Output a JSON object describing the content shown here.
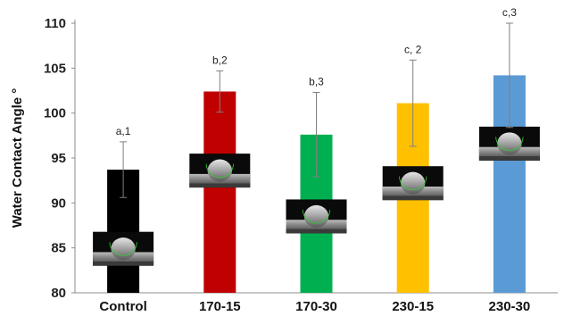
{
  "chart_data": {
    "type": "bar",
    "title": "",
    "xlabel": "",
    "ylabel": "Water Contact Angle °",
    "ylim": [
      80,
      110
    ],
    "yticks": [
      80,
      85,
      90,
      95,
      100,
      105,
      110
    ],
    "grid": false,
    "legend": "none",
    "categories": [
      "Control",
      "170-15",
      "170-30",
      "230-15",
      "230-30"
    ],
    "values": [
      93.7,
      102.4,
      97.6,
      101.1,
      104.2
    ],
    "error": [
      3.1,
      2.3,
      4.7,
      4.8,
      5.8
    ],
    "annotations": [
      "a,1",
      "b,2",
      "b,3",
      "c, 2",
      "c,3"
    ],
    "colors": [
      "#000000",
      "#c00000",
      "#00b050",
      "#ffc000",
      "#5b9bd5"
    ],
    "insets": [
      {
        "center": 84.9
      },
      {
        "center": 93.6
      },
      {
        "center": 88.5
      },
      {
        "center": 92.2
      },
      {
        "center": 96.6
      }
    ]
  }
}
